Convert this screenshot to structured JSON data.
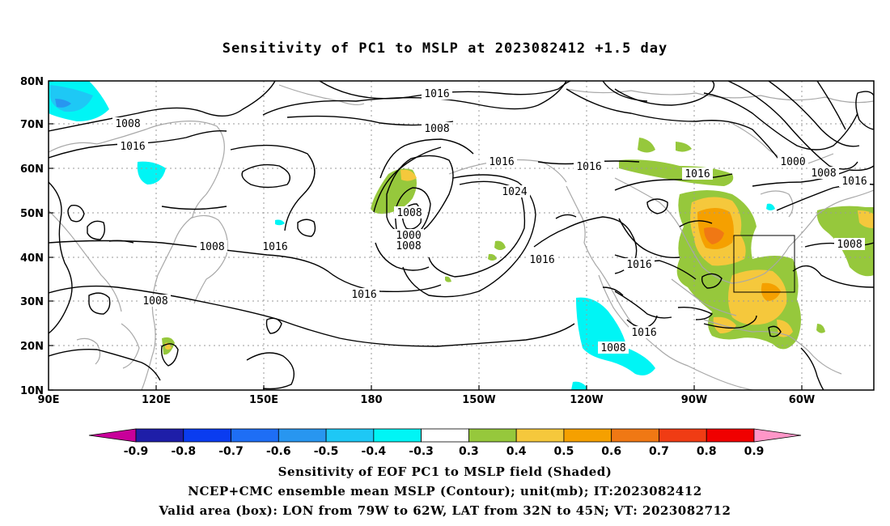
{
  "title": "Sensitivity of PC1 to MSLP at 2023082412 +1.5 day",
  "lat_labels": [
    "80N",
    "70N",
    "60N",
    "50N",
    "40N",
    "30N",
    "20N",
    "10N"
  ],
  "lon_labels": [
    "90E",
    "120E",
    "150E",
    "180",
    "150W",
    "120W",
    "90W",
    "60W"
  ],
  "contour_labels": [
    {
      "text": "1016"
    },
    {
      "text": "1008"
    },
    {
      "text": "1016"
    },
    {
      "text": "1008"
    },
    {
      "text": "1016"
    },
    {
      "text": "1008"
    },
    {
      "text": "1016"
    },
    {
      "text": "1000"
    },
    {
      "text": "1008"
    },
    {
      "text": "1024"
    },
    {
      "text": "1016"
    },
    {
      "text": "1016"
    },
    {
      "text": "1008"
    },
    {
      "text": "1016"
    },
    {
      "text": "1000"
    },
    {
      "text": "1008"
    },
    {
      "text": "1016"
    },
    {
      "text": "1016"
    },
    {
      "text": "1008"
    },
    {
      "text": "1016"
    },
    {
      "text": "1008"
    },
    {
      "text": "1008"
    },
    {
      "text": "1016"
    }
  ],
  "colorbar": {
    "labels": [
      "-0.9",
      "-0.8",
      "-0.7",
      "-0.6",
      "-0.5",
      "-0.4",
      "-0.3",
      "0.3",
      "0.4",
      "0.5",
      "0.6",
      "0.7",
      "0.8",
      "0.9"
    ],
    "colors": [
      "#c8009a",
      "#1e1ea8",
      "#0a3cf0",
      "#1e6ef5",
      "#2896f0",
      "#1ec8f5",
      "#00f5f5",
      "#ffffff",
      "#96c83c",
      "#f5c83c",
      "#f5a000",
      "#f07814",
      "#f03c14",
      "#f00000",
      "#ff96c8"
    ]
  },
  "captions": [
    "Sensitivity of EOF PC1 to MSLP field (Shaded)",
    "NCEP+CMC ensemble mean MSLP (Contour); unit(mb); IT:2023082412",
    "Valid area (box): LON from 79W to 62W, LAT from 32N to 45N; VT: 2023082712"
  ],
  "valid_box": {
    "lon_from": "79W",
    "lon_to": "62W",
    "lat_from": "32N",
    "lat_to": "45N"
  }
}
